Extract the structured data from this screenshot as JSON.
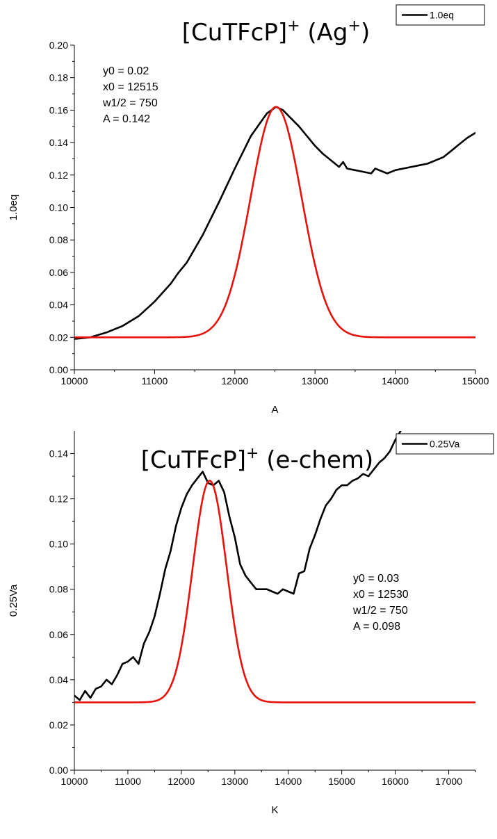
{
  "chart_data": [
    {
      "type": "line",
      "title": {
        "main": "[CuTFcP]",
        "sup1": "+",
        "paren_open": " (Ag",
        "sup2": "+",
        "paren_close": ")"
      },
      "xlabel": "A",
      "ylabel": "1.0eq",
      "xlim": [
        10000,
        15000
      ],
      "ylim": [
        0.0,
        0.2
      ],
      "xticks": [
        10000,
        11000,
        12000,
        13000,
        14000,
        15000
      ],
      "yticks": [
        0.0,
        0.02,
        0.04,
        0.06,
        0.08,
        0.1,
        0.12,
        0.14,
        0.16,
        0.18,
        0.2
      ],
      "ytick_labels": [
        "0.00",
        "0.02",
        "0.04",
        "0.06",
        "0.08",
        "0.10",
        "0.12",
        "0.14",
        "0.16",
        "0.18",
        "0.20"
      ],
      "legend": {
        "position": "top-right",
        "label": "1.0eq"
      },
      "annotation": [
        "y0 = 0.02",
        "x0 = 12515",
        "w1/2 = 750",
        "A = 0.142"
      ],
      "series": [
        {
          "name": "1.0eq",
          "color": "#000000",
          "x": [
            10000,
            10200,
            10400,
            10600,
            10800,
            11000,
            11200,
            11300,
            11400,
            11600,
            11800,
            12000,
            12200,
            12400,
            12515,
            12600,
            12800,
            13000,
            13100,
            13200,
            13300,
            13350,
            13400,
            13500,
            13600,
            13700,
            13750,
            13800,
            13900,
            14000,
            14100,
            14200,
            14300,
            14400,
            14500,
            14600,
            14700,
            14800,
            14900,
            15000
          ],
          "y": [
            0.019,
            0.02,
            0.023,
            0.027,
            0.033,
            0.042,
            0.053,
            0.06,
            0.066,
            0.083,
            0.103,
            0.124,
            0.144,
            0.158,
            0.162,
            0.16,
            0.15,
            0.138,
            0.133,
            0.129,
            0.125,
            0.128,
            0.124,
            0.123,
            0.122,
            0.121,
            0.124,
            0.123,
            0.121,
            0.123,
            0.124,
            0.125,
            0.126,
            0.127,
            0.129,
            0.131,
            0.135,
            0.139,
            0.143,
            0.146
          ]
        },
        {
          "name": "",
          "color": "#e8120c",
          "fit": {
            "model": "gaussian",
            "y0": 0.02,
            "x0": 12515,
            "w": 750,
            "A": 0.142
          },
          "x_range": [
            10000,
            15000
          ]
        }
      ]
    },
    {
      "type": "line",
      "title": {
        "main": "[CuTFcP]",
        "sup1": "+",
        "paren_open": " (e-chem)",
        "sup2": "",
        "paren_close": ""
      },
      "xlabel": "K",
      "ylabel": "0.25Va",
      "xlim": [
        10000,
        17500
      ],
      "ylim": [
        0.0,
        0.15
      ],
      "xticks": [
        10000,
        11000,
        12000,
        13000,
        14000,
        15000,
        16000,
        17000
      ],
      "yticks": [
        0.0,
        0.02,
        0.04,
        0.06,
        0.08,
        0.1,
        0.12,
        0.14
      ],
      "ytick_labels": [
        "0.00",
        "0.02",
        "0.04",
        "0.06",
        "0.08",
        "0.10",
        "0.12",
        "0.14"
      ],
      "legend": {
        "position": "top-right",
        "label": "0.25Va"
      },
      "annotation": [
        "y0 = 0.03",
        "x0 = 12530",
        "w1/2 = 750",
        "A = 0.098"
      ],
      "series": [
        {
          "name": "0.25Va",
          "color": "#000000",
          "x": [
            10000,
            10100,
            10200,
            10300,
            10400,
            10500,
            10600,
            10700,
            10800,
            10900,
            11000,
            11100,
            11200,
            11300,
            11400,
            11500,
            11600,
            11700,
            11800,
            11900,
            12000,
            12100,
            12200,
            12300,
            12400,
            12500,
            12600,
            12700,
            12800,
            12900,
            13000,
            13100,
            13200,
            13300,
            13400,
            13500,
            13600,
            13700,
            13800,
            13900,
            14000,
            14100,
            14200,
            14300,
            14400,
            14500,
            14600,
            14700,
            14800,
            14900,
            15000,
            15100,
            15200,
            15300,
            15400,
            15500,
            15600,
            15700,
            15800,
            15900,
            16000,
            16100
          ],
          "y": [
            0.033,
            0.031,
            0.035,
            0.032,
            0.036,
            0.037,
            0.04,
            0.038,
            0.042,
            0.047,
            0.048,
            0.05,
            0.047,
            0.056,
            0.061,
            0.068,
            0.078,
            0.089,
            0.097,
            0.108,
            0.116,
            0.122,
            0.126,
            0.129,
            0.132,
            0.127,
            0.126,
            0.128,
            0.123,
            0.112,
            0.103,
            0.091,
            0.086,
            0.083,
            0.08,
            0.08,
            0.08,
            0.079,
            0.078,
            0.08,
            0.079,
            0.078,
            0.087,
            0.088,
            0.098,
            0.104,
            0.111,
            0.117,
            0.12,
            0.124,
            0.126,
            0.126,
            0.128,
            0.129,
            0.131,
            0.13,
            0.133,
            0.136,
            0.138,
            0.141,
            0.146,
            0.15
          ]
        },
        {
          "name": "",
          "color": "#e8120c",
          "fit": {
            "model": "gaussian",
            "y0": 0.03,
            "x0": 12530,
            "w": 750,
            "A": 0.098
          },
          "x_range": [
            10000,
            17500
          ]
        }
      ]
    }
  ]
}
